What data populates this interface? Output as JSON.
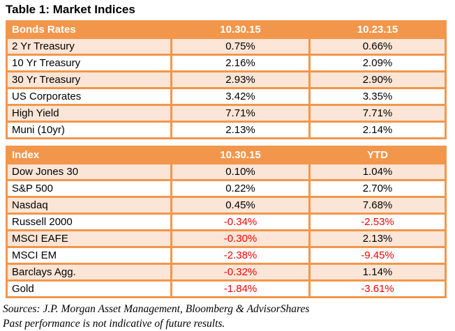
{
  "title": "Table 1: Market Indices",
  "colors": {
    "accent_orange": "#F2964C",
    "row_peach": "#FBE5D6",
    "row_white": "#FFFFFF",
    "negative_red": "#FF0000",
    "header_text": "#FFFFFF",
    "body_text": "#000000"
  },
  "bonds_table": {
    "headers": [
      "Bonds Rates",
      "10.30.15",
      "10.23.15"
    ],
    "rows": [
      {
        "label": "2 Yr Treasury",
        "values": [
          "0.75%",
          "0.66%"
        ]
      },
      {
        "label": "10 Yr Treasury",
        "values": [
          "2.16%",
          "2.09%"
        ]
      },
      {
        "label": "30 Yr Treasury",
        "values": [
          "2.93%",
          "2.90%"
        ]
      },
      {
        "label": "US Corporates",
        "values": [
          "3.42%",
          "3.35%"
        ]
      },
      {
        "label": "High Yield",
        "values": [
          "7.71%",
          "7.71%"
        ]
      },
      {
        "label": "Muni (10yr)",
        "values": [
          "2.13%",
          "2.14%"
        ]
      }
    ]
  },
  "index_table": {
    "headers": [
      "Index",
      "10.30.15",
      "YTD"
    ],
    "rows": [
      {
        "label": "Dow Jones 30",
        "values": [
          "0.10%",
          "1.04%"
        ]
      },
      {
        "label": "S&P 500",
        "values": [
          "0.22%",
          "2.70%"
        ]
      },
      {
        "label": "Nasdaq",
        "values": [
          "0.45%",
          "7.68%"
        ]
      },
      {
        "label": "Russell 2000",
        "values": [
          "-0.34%",
          "-2.53%"
        ]
      },
      {
        "label": "MSCI EAFE",
        "values": [
          "-0.30%",
          "2.13%"
        ]
      },
      {
        "label": "MSCI EM",
        "values": [
          "-2.38%",
          "-9.45%"
        ]
      },
      {
        "label": "Barclays Agg.",
        "values": [
          "-0.32%",
          "1.14%"
        ]
      },
      {
        "label": "Gold",
        "values": [
          "-1.84%",
          "-3.61%"
        ]
      }
    ]
  },
  "footer": {
    "sources": "Sources: J.P. Morgan Asset Management, Bloomberg & AdvisorShares",
    "disclaimer": "Past performance is not indicative of future results."
  },
  "chart_data": [
    {
      "type": "table",
      "title": "Bonds Rates",
      "columns": [
        "Bonds Rates",
        "10.30.15",
        "10.23.15"
      ],
      "rows": [
        [
          "2 Yr Treasury",
          "0.75%",
          "0.66%"
        ],
        [
          "10 Yr Treasury",
          "2.16%",
          "2.09%"
        ],
        [
          "30 Yr Treasury",
          "2.93%",
          "2.90%"
        ],
        [
          "US Corporates",
          "3.42%",
          "3.35%"
        ],
        [
          "High Yield",
          "7.71%",
          "7.71%"
        ],
        [
          "Muni (10yr)",
          "2.13%",
          "2.14%"
        ]
      ]
    },
    {
      "type": "table",
      "title": "Index",
      "columns": [
        "Index",
        "10.30.15",
        "YTD"
      ],
      "rows": [
        [
          "Dow Jones 30",
          "0.10%",
          "1.04%"
        ],
        [
          "S&P 500",
          "0.22%",
          "2.70%"
        ],
        [
          "Nasdaq",
          "0.45%",
          "7.68%"
        ],
        [
          "Russell 2000",
          "-0.34%",
          "-2.53%"
        ],
        [
          "MSCI EAFE",
          "-0.30%",
          "2.13%"
        ],
        [
          "MSCI EM",
          "-2.38%",
          "-9.45%"
        ],
        [
          "Barclays Agg.",
          "-0.32%",
          "1.14%"
        ],
        [
          "Gold",
          "-1.84%",
          "-3.61%"
        ]
      ]
    }
  ]
}
